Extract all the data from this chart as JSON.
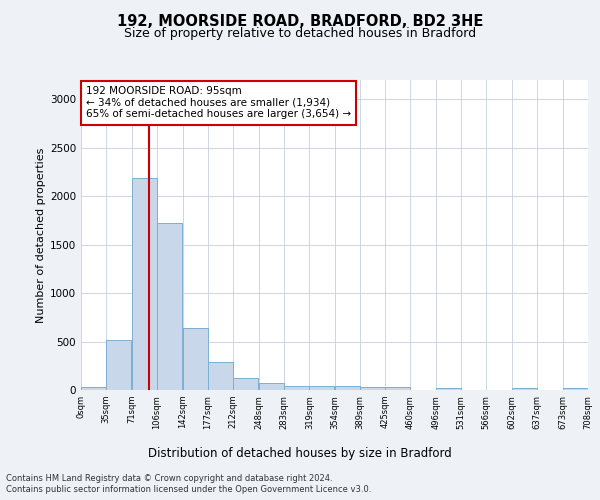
{
  "title1": "192, MOORSIDE ROAD, BRADFORD, BD2 3HE",
  "title2": "Size of property relative to detached houses in Bradford",
  "xlabel": "Distribution of detached houses by size in Bradford",
  "ylabel": "Number of detached properties",
  "bar_color": "#c8d8ea",
  "bar_edge_color": "#7bafd4",
  "vline_color": "#cc0000",
  "vline_x": 95,
  "bin_width": 35,
  "bin_starts": [
    0,
    35,
    71,
    106,
    142,
    177,
    212,
    248,
    283,
    319,
    354,
    389,
    425,
    460,
    496,
    531,
    566,
    602,
    637,
    673
  ],
  "bar_heights": [
    30,
    520,
    2190,
    1720,
    640,
    290,
    125,
    70,
    40,
    40,
    40,
    30,
    30,
    0,
    25,
    0,
    0,
    20,
    0,
    20
  ],
  "tick_labels": [
    "0sqm",
    "35sqm",
    "71sqm",
    "106sqm",
    "142sqm",
    "177sqm",
    "212sqm",
    "248sqm",
    "283sqm",
    "319sqm",
    "354sqm",
    "389sqm",
    "425sqm",
    "460sqm",
    "496sqm",
    "531sqm",
    "566sqm",
    "602sqm",
    "637sqm",
    "673sqm",
    "708sqm"
  ],
  "ylim": [
    0,
    3200
  ],
  "yticks": [
    0,
    500,
    1000,
    1500,
    2000,
    2500,
    3000
  ],
  "annotation_text": "192 MOORSIDE ROAD: 95sqm\n← 34% of detached houses are smaller (1,934)\n65% of semi-detached houses are larger (3,654) →",
  "annotation_box_color": "white",
  "annotation_box_edge": "#cc0000",
  "footer1": "Contains HM Land Registry data © Crown copyright and database right 2024.",
  "footer2": "Contains public sector information licensed under the Open Government Licence v3.0.",
  "bg_color": "#eef2f7",
  "plot_bg_color": "white",
  "grid_color": "#c5cfe0"
}
